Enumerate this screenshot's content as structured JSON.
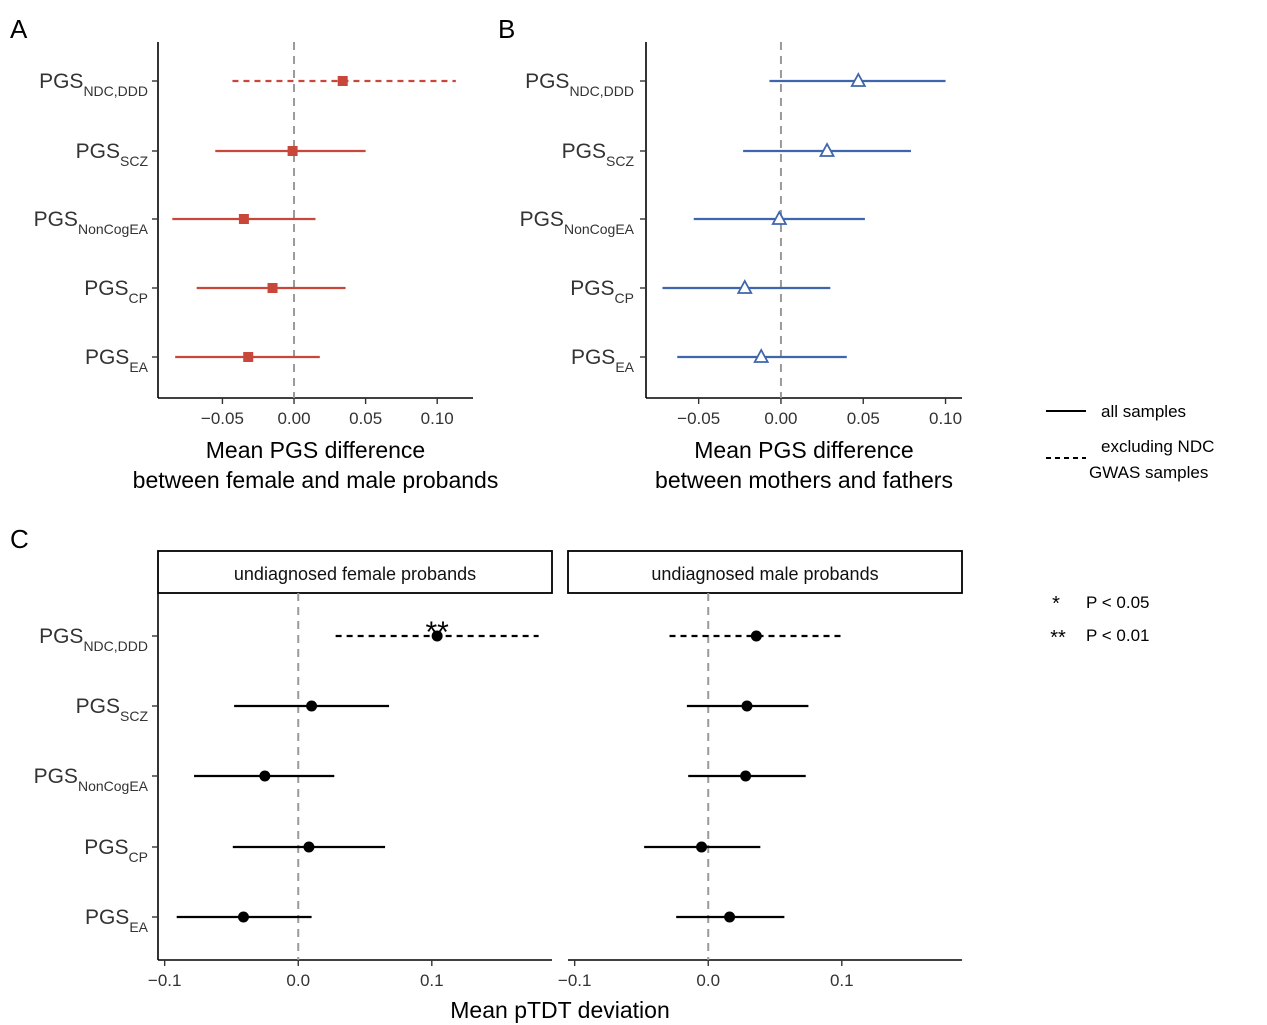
{
  "chart_data": [
    {
      "panel": "A",
      "type": "forest",
      "color": "#c8473a",
      "marker": "square",
      "categories": [
        {
          "main": "PGS",
          "sub": "NDC,DDD"
        },
        {
          "main": "PGS",
          "sub": "SCZ"
        },
        {
          "main": "PGS",
          "sub": "NonCogEA"
        },
        {
          "main": "PGS",
          "sub": "CP"
        },
        {
          "main": "PGS",
          "sub": "EA"
        }
      ],
      "estimate": [
        0.034,
        -0.001,
        -0.035,
        -0.015,
        -0.032
      ],
      "ci_low": [
        -0.043,
        -0.055,
        -0.085,
        -0.068,
        -0.083
      ],
      "ci_high": [
        0.113,
        0.05,
        0.015,
        0.036,
        0.018
      ],
      "dashed": [
        true,
        false,
        false,
        false,
        false
      ],
      "xlim": [
        -0.095,
        0.125
      ],
      "xticks": [
        "-0.05",
        "0.00",
        "0.05",
        "0.10"
      ],
      "xtick_values": [
        -0.05,
        0.0,
        0.05,
        0.1
      ],
      "xlabel_line1": "Mean PGS difference",
      "xlabel_line2": "between female and male probands",
      "reference_line": 0
    },
    {
      "panel": "B",
      "type": "forest",
      "color": "#3f66ad",
      "marker": "triangle-open",
      "categories": [
        {
          "main": "PGS",
          "sub": "NDC,DDD"
        },
        {
          "main": "PGS",
          "sub": "SCZ"
        },
        {
          "main": "PGS",
          "sub": "NonCogEA"
        },
        {
          "main": "PGS",
          "sub": "CP"
        },
        {
          "main": "PGS",
          "sub": "EA"
        }
      ],
      "estimate": [
        0.047,
        0.028,
        -0.001,
        -0.022,
        -0.012
      ],
      "ci_low": [
        -0.007,
        -0.023,
        -0.053,
        -0.072,
        -0.063
      ],
      "ci_high": [
        0.1,
        0.079,
        0.051,
        0.03,
        0.04
      ],
      "dashed": [
        false,
        false,
        false,
        false,
        false
      ],
      "xlim": [
        -0.082,
        0.11
      ],
      "xticks": [
        "-0.05",
        "0.00",
        "0.05",
        "0.10"
      ],
      "xtick_values": [
        -0.05,
        0.0,
        0.05,
        0.1
      ],
      "xlabel_line1": "Mean PGS difference",
      "xlabel_line2": "between mothers and fathers",
      "reference_line": 0
    },
    {
      "panel": "C",
      "type": "forest-facet",
      "color": "#000000",
      "marker": "circle",
      "categories": [
        {
          "main": "PGS",
          "sub": "NDC,DDD"
        },
        {
          "main": "PGS",
          "sub": "SCZ"
        },
        {
          "main": "PGS",
          "sub": "NonCogEA"
        },
        {
          "main": "PGS",
          "sub": "CP"
        },
        {
          "main": "PGS",
          "sub": "EA"
        }
      ],
      "facets": [
        {
          "title": "undiagnosed female probands",
          "estimate": [
            0.104,
            0.01,
            -0.025,
            0.008,
            -0.041
          ],
          "ci_low": [
            0.028,
            -0.048,
            -0.078,
            -0.049,
            -0.091
          ],
          "ci_high": [
            0.18,
            0.068,
            0.027,
            0.065,
            0.01
          ],
          "dashed": [
            true,
            false,
            false,
            false,
            false
          ],
          "significance": [
            "**",
            "",
            "",
            "",
            ""
          ]
        },
        {
          "title": "undiagnosed male probands",
          "estimate": [
            0.036,
            0.029,
            0.028,
            -0.005,
            0.016
          ],
          "ci_low": [
            -0.029,
            -0.016,
            -0.015,
            -0.048,
            -0.024
          ],
          "ci_high": [
            0.101,
            0.075,
            0.073,
            0.039,
            0.057
          ],
          "dashed": [
            true,
            false,
            false,
            false,
            false
          ],
          "significance": [
            "",
            "",
            "",
            "",
            ""
          ]
        }
      ],
      "xlim": [
        -0.105,
        0.19
      ],
      "xticks": [
        "-0.1",
        "0.0",
        "0.1"
      ],
      "xtick_values": [
        -0.1,
        0.0,
        0.1
      ],
      "xlabel": "Mean pTDT deviation",
      "reference_line": 0
    }
  ],
  "panel_letters": {
    "a": "A",
    "b": "B",
    "c": "C"
  },
  "legend_lines": {
    "solid_label": "all samples",
    "dashed_label_line1": "excluding NDC",
    "dashed_label_line2": "GWAS samples"
  },
  "legend_sig": [
    {
      "symbol": "*",
      "label": "P < 0.05"
    },
    {
      "symbol": "**",
      "label": "P < 0.01"
    }
  ]
}
